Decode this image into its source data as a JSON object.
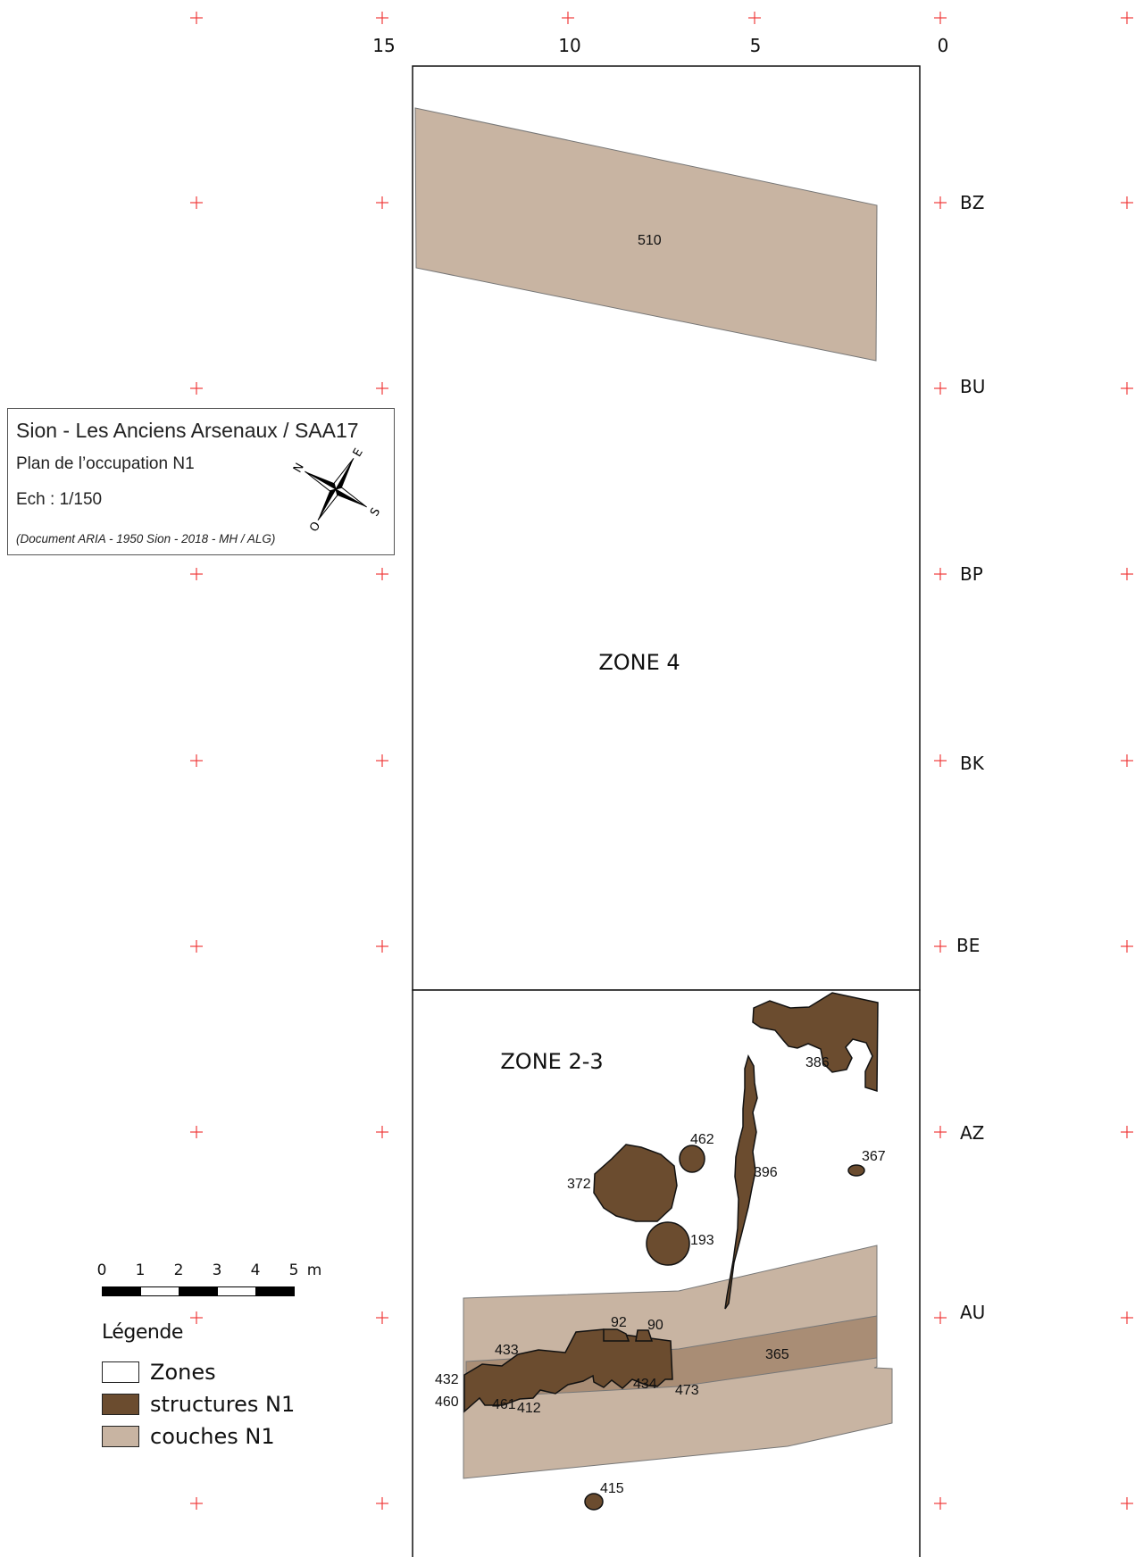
{
  "colors": {
    "grid_cross": "#ef3b3b",
    "zone_fill": "#ffffff",
    "zone_stroke": "#111111",
    "structures_fill": "#6b4c2f",
    "couches_fill": "#c8b4a2",
    "couches_dark_fill": "#a98d75"
  },
  "axes": {
    "top_labels": [
      "15",
      "10",
      "5",
      "0"
    ],
    "right_labels": [
      "BZ",
      "BU",
      "BP",
      "BK",
      "BE",
      "AZ",
      "AU"
    ]
  },
  "zones": [
    "ZONE 4",
    "ZONE 2-3"
  ],
  "feature_labels": [
    "510",
    "386",
    "462",
    "367",
    "372",
    "396",
    "193",
    "92",
    "90",
    "433",
    "365",
    "432",
    "434",
    "473",
    "460",
    "461",
    "412",
    "415"
  ],
  "title_block": {
    "line1": "Sion - Les Anciens Arsenaux / SAA17",
    "line2": "Plan de l’occupation N1",
    "line3": "Ech : 1/150",
    "credit": "(Document ARIA - 1950 Sion - 2018 - MH / ALG)",
    "compass_letters": [
      "N",
      "E",
      "S",
      "O"
    ],
    "compass_icon": "compass-rose-icon"
  },
  "scale": {
    "ticks": [
      "0",
      "1",
      "2",
      "3",
      "4",
      "5"
    ],
    "unit": "m"
  },
  "legend": {
    "title": "Légende",
    "items": [
      {
        "label": "Zones",
        "color": "#ffffff"
      },
      {
        "label": "structures N1",
        "color": "#6b4c2f"
      },
      {
        "label": "couches N1",
        "color": "#c8b4a2"
      }
    ]
  }
}
